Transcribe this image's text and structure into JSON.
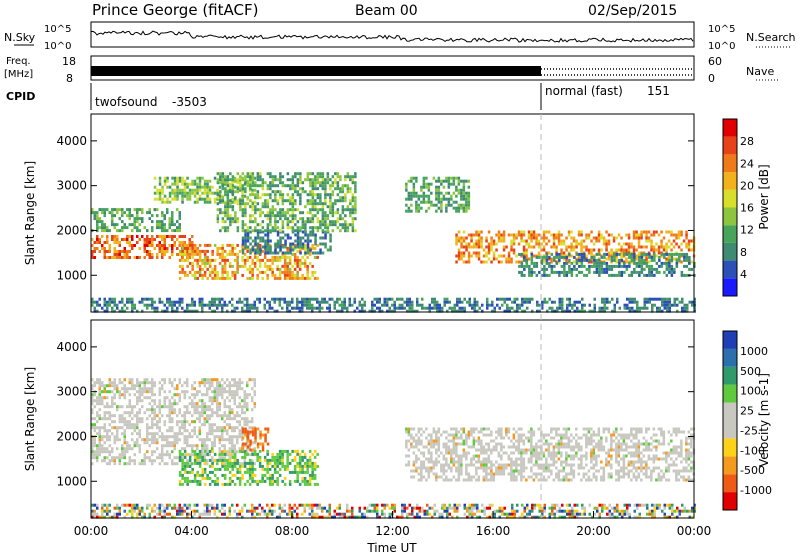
{
  "header": {
    "station": "Prince George (fitACF)",
    "beam": "Beam 00",
    "date": "02/Sep/2015"
  },
  "strip_panels": {
    "nsky_label": "N.Sky",
    "nsearch_label": "N.Search",
    "noise_ticks": [
      "10^5",
      "10^0"
    ],
    "freq_label_1": "Freq.",
    "freq_label_2": "[MHz]",
    "freq_ticks": [
      "18",
      "8"
    ],
    "nave_label": "Nave",
    "nave_ticks": [
      "60",
      "0"
    ],
    "cpid_label": "CPID",
    "cpid_modes": [
      {
        "name": "twofsound",
        "id": "-3503",
        "start_hour": 0
      },
      {
        "name": "normal (fast)",
        "id": "151",
        "start_hour": 18
      }
    ]
  },
  "colors": {
    "power_scale": [
      "#1a1aff",
      "#2b50b8",
      "#3f8a73",
      "#47a45b",
      "#8dc63e",
      "#d8df2b",
      "#f2b21b",
      "#f07a1a",
      "#e84318",
      "#e00000"
    ],
    "velocity_scale": [
      "#e00000",
      "#ef5b14",
      "#f39a1f",
      "#ffd21a",
      "#c8c8c0",
      "#c8c8c0",
      "#5fcb3c",
      "#2f9a6a",
      "#2c6fae",
      "#1f3fb7"
    ]
  },
  "chart_data": [
    {
      "type": "heatmap",
      "id": "power",
      "title": "",
      "xlabel": "",
      "ylabel": "Slant Range [km]",
      "xlim": [
        0,
        24
      ],
      "ylim": [
        180,
        4600
      ],
      "yticks": [
        "1000",
        "2000",
        "3000",
        "4000"
      ],
      "colorbar": {
        "label": "Power [dB]",
        "ticks": [
          "4",
          "8",
          "12",
          "16",
          "20",
          "24",
          "28"
        ],
        "range": [
          0,
          30
        ]
      },
      "scatter_regions": [
        {
          "t0": 0.0,
          "t1": 4.0,
          "r0": 1400,
          "r1": 1900,
          "v0": 18,
          "v1": 28
        },
        {
          "t0": 0.0,
          "t1": 3.5,
          "r0": 2000,
          "r1": 2500,
          "v0": 6,
          "v1": 14
        },
        {
          "t0": 2.5,
          "t1": 6.5,
          "r0": 2600,
          "r1": 3200,
          "v0": 8,
          "v1": 18
        },
        {
          "t0": 3.5,
          "t1": 9.0,
          "r0": 900,
          "r1": 1700,
          "v0": 14,
          "v1": 26
        },
        {
          "t0": 6.0,
          "t1": 9.5,
          "r0": 1500,
          "r1": 2000,
          "v0": 4,
          "v1": 10
        },
        {
          "t0": 5.0,
          "t1": 10.5,
          "r0": 2000,
          "r1": 3300,
          "v0": 6,
          "v1": 16
        },
        {
          "t0": 12.5,
          "t1": 15.0,
          "r0": 2400,
          "r1": 3200,
          "v0": 6,
          "v1": 14
        },
        {
          "t0": 14.5,
          "t1": 24.0,
          "r0": 1300,
          "r1": 2000,
          "v0": 16,
          "v1": 26
        },
        {
          "t0": 17.0,
          "t1": 24.0,
          "r0": 1000,
          "r1": 1500,
          "v0": 4,
          "v1": 12
        },
        {
          "t0": 0.0,
          "t1": 24.0,
          "r0": 200,
          "r1": 500,
          "v0": 4,
          "v1": 10
        }
      ]
    },
    {
      "type": "heatmap",
      "id": "velocity",
      "title": "",
      "xlabel": "Time UT",
      "ylabel": "Slant Range [km]",
      "xlim": [
        0,
        24
      ],
      "ylim": [
        180,
        4600
      ],
      "xticks": [
        "00:00",
        "04:00",
        "08:00",
        "12:00",
        "16:00",
        "20:00",
        "00:00"
      ],
      "yticks": [
        "1000",
        "2000",
        "3000",
        "4000"
      ],
      "colorbar": {
        "label": "Velocity [m s-1]",
        "ticks": [
          "-1000",
          "-500",
          "-100",
          "-25",
          "25",
          "100",
          "500",
          "1000"
        ]
      },
      "scatter_regions": [
        {
          "t0": 0.0,
          "t1": 6.5,
          "r0": 1400,
          "r1": 3300,
          "class": "ground"
        },
        {
          "t0": 3.5,
          "t1": 9.0,
          "r0": 900,
          "r1": 1700,
          "class": "positive"
        },
        {
          "t0": 6.0,
          "t1": 7.0,
          "r0": 1700,
          "r1": 2200,
          "class": "negative"
        },
        {
          "t0": 12.5,
          "t1": 24.0,
          "r0": 1000,
          "r1": 2200,
          "class": "ground"
        },
        {
          "t0": 0.0,
          "t1": 24.0,
          "r0": 200,
          "r1": 500,
          "class": "mixed"
        }
      ]
    }
  ]
}
